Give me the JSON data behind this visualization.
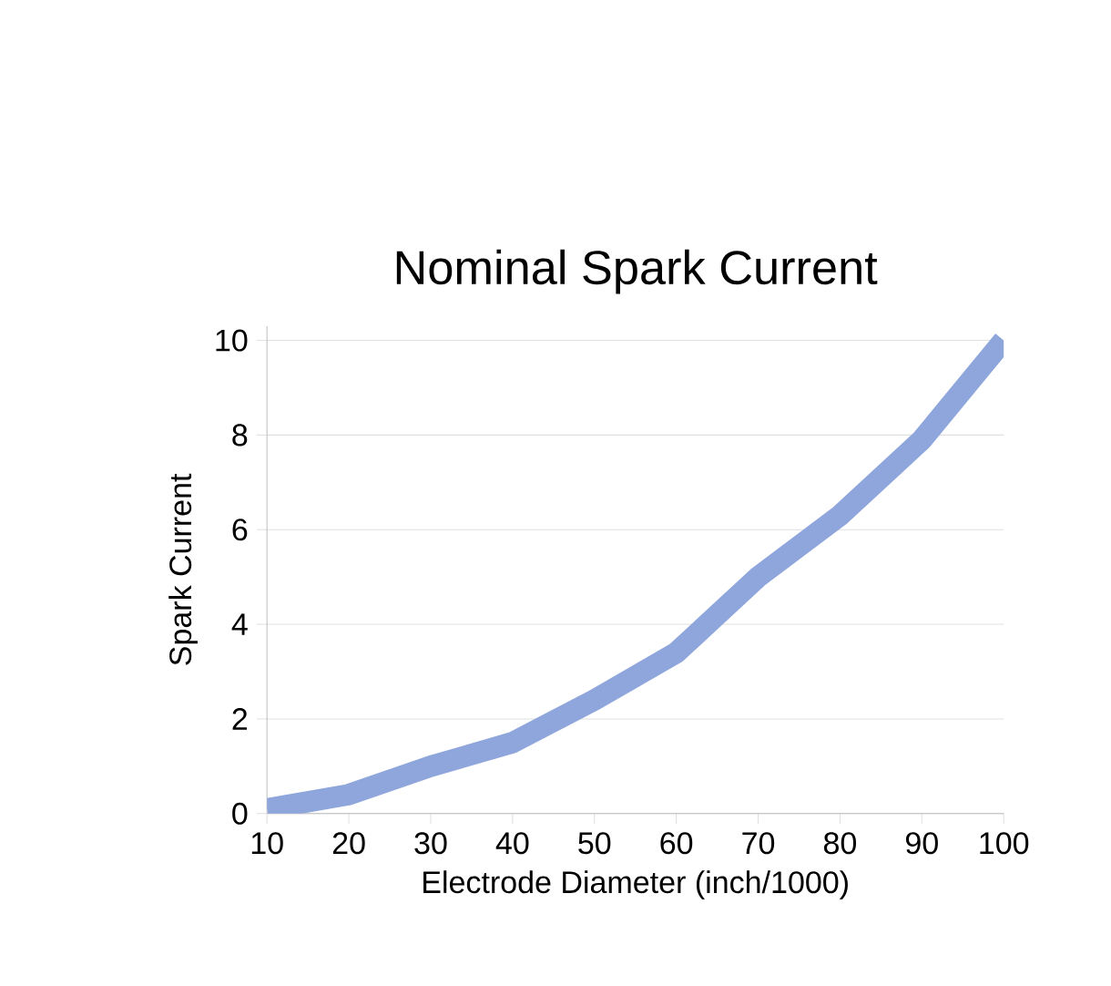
{
  "chart_data": {
    "type": "line",
    "title": "Nominal Spark Current",
    "xlabel": "Electrode Diameter (inch/1000)",
    "ylabel": "Spark Current",
    "x": [
      10,
      20,
      30,
      40,
      50,
      60,
      70,
      80,
      90,
      100
    ],
    "values": [
      0.1,
      0.4,
      1.0,
      1.5,
      2.4,
      3.4,
      5.0,
      6.3,
      7.9,
      10.0
    ],
    "color": "#8fa6dc",
    "xlim": [
      10,
      100
    ],
    "xticks": [
      10,
      20,
      30,
      40,
      50,
      60,
      70,
      80,
      90,
      100
    ],
    "ylim": [
      0,
      10.3
    ],
    "yticks": [
      0,
      2,
      4,
      6,
      8,
      10
    ],
    "grid": "y",
    "marker": "none",
    "line_style": "solid"
  }
}
